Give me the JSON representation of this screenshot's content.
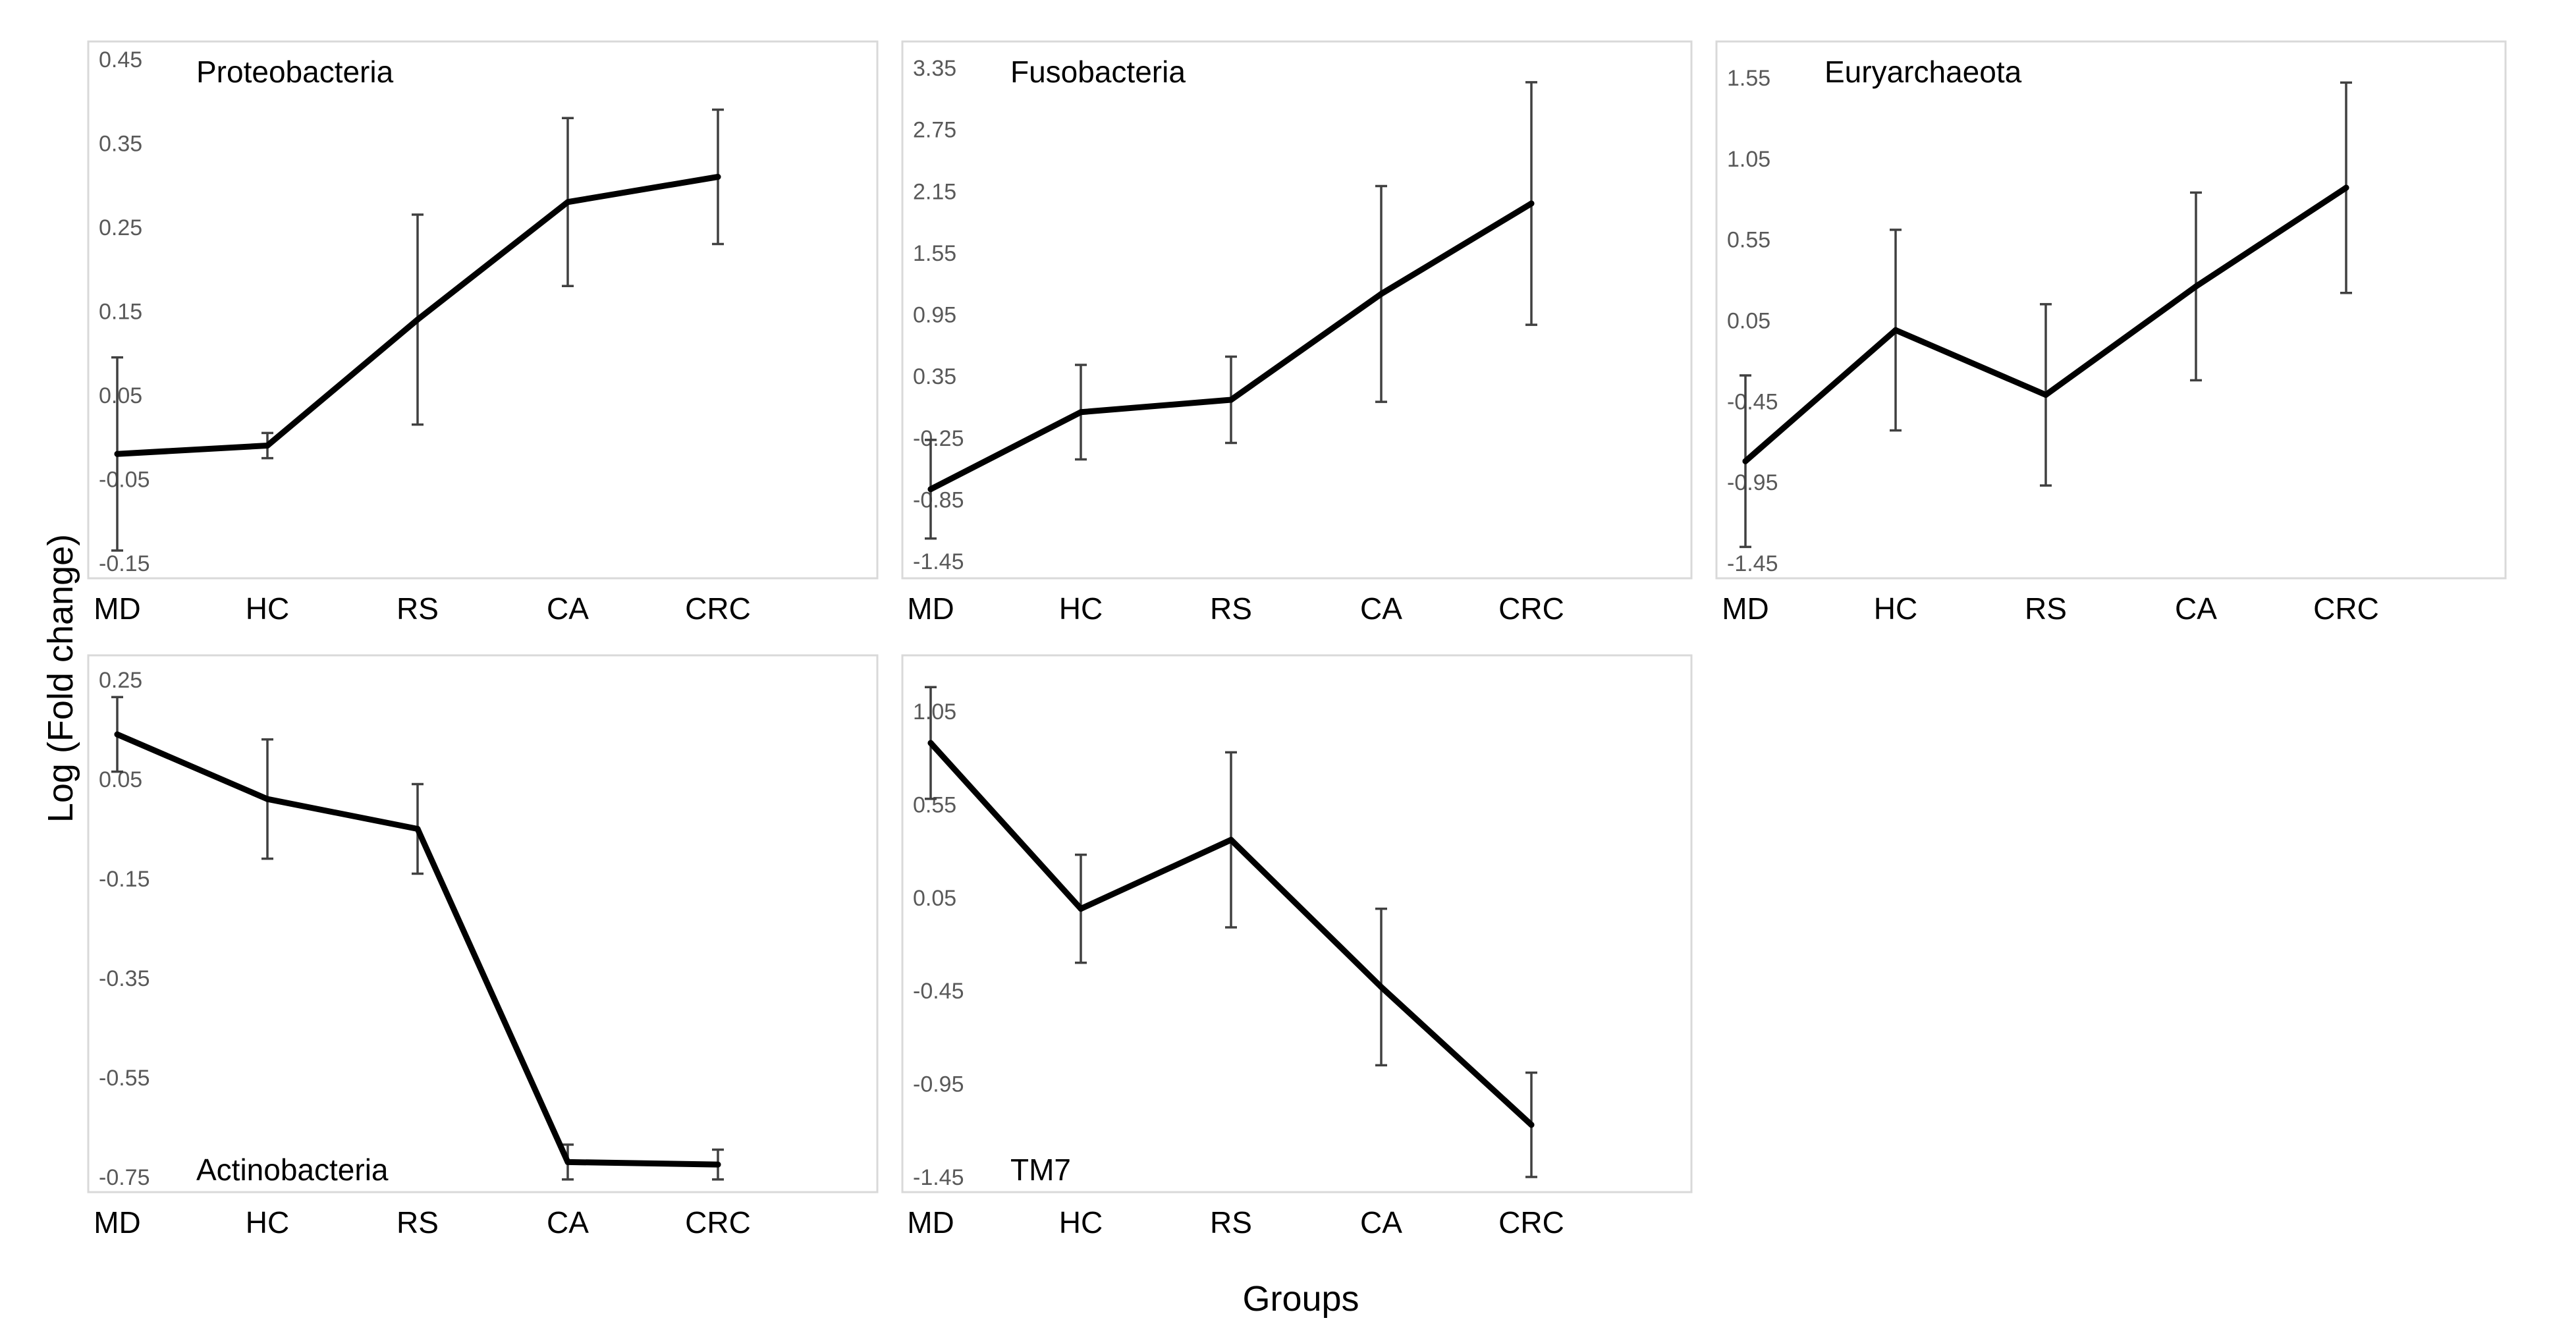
{
  "figure": {
    "ylabel": "Log (Fold change)",
    "xlabel": "Groups"
  },
  "chart_data": [
    {
      "type": "line",
      "title": "Proteobacteria",
      "categories": [
        "MD",
        "HC",
        "RS",
        "CA",
        "CRC"
      ],
      "values": [
        -0.02,
        -0.01,
        0.14,
        0.28,
        0.31
      ],
      "error": [
        0.115,
        0.015,
        0.125,
        0.1,
        0.08
      ],
      "ylim": [
        -0.15,
        0.45
      ],
      "yticks": [
        "-0.15",
        "-0.05",
        "0.05",
        "0.15",
        "0.25",
        "0.35",
        "0.45"
      ]
    },
    {
      "type": "line",
      "title": "Fusobacteria",
      "categories": [
        "MD",
        "HC",
        "RS",
        "CA",
        "CRC"
      ],
      "values": [
        -0.75,
        0.0,
        0.12,
        1.15,
        2.03
      ],
      "error": [
        0.48,
        0.46,
        0.42,
        1.05,
        1.18
      ],
      "ylim": [
        -1.45,
        3.35
      ],
      "yticks": [
        "-1.45",
        "-0.85",
        "-0.25",
        "0.35",
        "0.95",
        "1.55",
        "2.15",
        "2.75",
        "3.35"
      ]
    },
    {
      "type": "line",
      "title": "Euryarchaeota",
      "categories": [
        "MD",
        "HC",
        "RS",
        "CA",
        "CRC"
      ],
      "values": [
        -0.82,
        -0.01,
        -0.41,
        0.26,
        0.87
      ],
      "error": [
        0.53,
        0.62,
        0.56,
        0.58,
        0.65
      ],
      "ylim": [
        -1.45,
        1.55
      ],
      "yticks": [
        "-1.45",
        "-0.95",
        "-0.45",
        "0.05",
        "0.55",
        "1.05",
        "1.55"
      ]
    },
    {
      "type": "line",
      "title": "Actinobacteria",
      "categories": [
        "MD",
        "HC",
        "RS",
        "CA",
        "CRC"
      ],
      "values": [
        0.14,
        0.01,
        -0.05,
        -0.72,
        -0.725
      ],
      "error": [
        0.075,
        0.12,
        0.09,
        0.035,
        0.03
      ],
      "ylim": [
        -0.75,
        0.25
      ],
      "yticks": [
        "-0.75",
        "-0.55",
        "-0.35",
        "-0.15",
        "0.05",
        "0.25"
      ]
    },
    {
      "type": "line",
      "title": "TM7",
      "categories": [
        "MD",
        "HC",
        "RS",
        "CA",
        "CRC"
      ],
      "values": [
        0.88,
        -0.01,
        0.36,
        -0.43,
        -1.17
      ],
      "error": [
        0.3,
        0.29,
        0.47,
        0.42,
        0.28
      ],
      "ylim": [
        -1.45,
        1.05
      ],
      "yticks": [
        "-1.45",
        "-0.95",
        "-0.45",
        "0.05",
        "0.55",
        "1.05"
      ]
    }
  ]
}
